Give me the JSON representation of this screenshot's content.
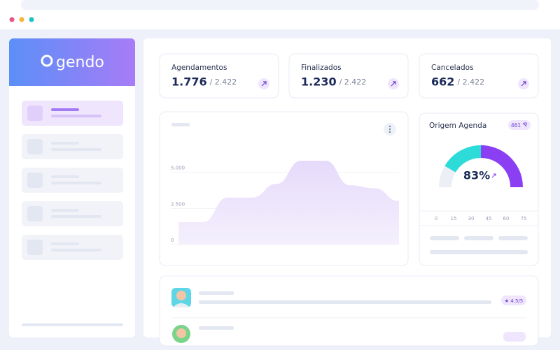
{
  "brand": "gendo",
  "stats": [
    {
      "label": "Agendamentos",
      "value": "1.776",
      "total": "/ 2.422"
    },
    {
      "label": "Finalizados",
      "value": "1.230",
      "total": "/ 2.422"
    },
    {
      "label": "Cancelados",
      "value": "662",
      "total": "/ 2.422"
    }
  ],
  "area_chart": {
    "type": "area",
    "color": "#ebe3fc",
    "values": [
      1550,
      1550,
      3250,
      3250,
      4200,
      5800,
      5800,
      4100,
      3900,
      3000
    ],
    "ylim": [
      0,
      6000
    ],
    "yticks": [
      0,
      {
        "value": 2500,
        "label": "2.500"
      },
      {
        "value": 5000,
        "label": "5.000"
      }
    ]
  },
  "gauge": {
    "type": "gauge",
    "title": "Origem Agenda",
    "badge": "461",
    "value": 83,
    "value_label": "83%",
    "scale_ticks": [
      0,
      15,
      30,
      45,
      60,
      75
    ]
  },
  "reviews": [
    {
      "rating": "★ 4.5/5"
    }
  ]
}
